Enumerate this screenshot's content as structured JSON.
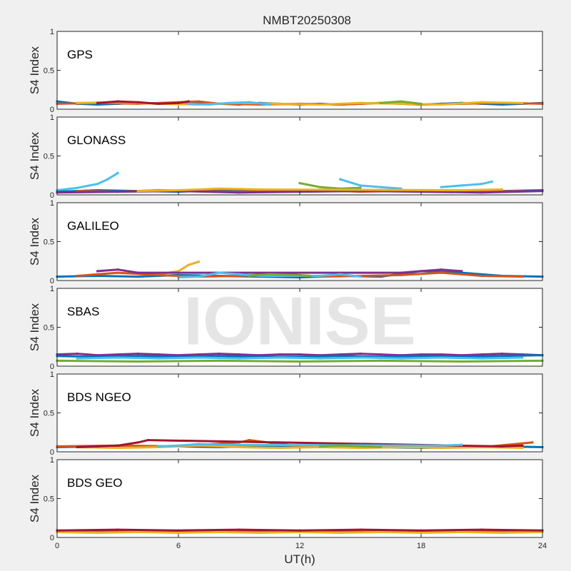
{
  "chart_data": {
    "type": "scatter",
    "title": "NMBT20250308",
    "watermark": "IONISE",
    "xlabel": "UT(h)",
    "ylabel": "S4 Index",
    "xlim": [
      0,
      24
    ],
    "ylim": [
      0,
      1
    ],
    "xticks": [
      0,
      6,
      12,
      18,
      24
    ],
    "yticks": [
      0,
      0.5,
      1
    ],
    "grid": false,
    "series_colors": [
      "#0072BD",
      "#D95319",
      "#EDB120",
      "#7E2F8E",
      "#77AC30",
      "#4DBEEE",
      "#A2142F"
    ],
    "panels": [
      {
        "name": "GPS",
        "series": [
          {
            "color": "#0072BD",
            "x": [
              0,
              1,
              2,
              3,
              4,
              5,
              6,
              7,
              8,
              9,
              10,
              11,
              12,
              13,
              14,
              15,
              16,
              17,
              18,
              19,
              20,
              21,
              22,
              23,
              24
            ],
            "y": [
              0.1,
              0.07,
              0.06,
              0.07,
              0.08,
              0.07,
              0.08,
              0.09,
              0.07,
              0.06,
              0.08,
              0.07,
              0.06,
              0.07,
              0.06,
              0.07,
              0.08,
              0.07,
              0.06,
              0.07,
              0.08,
              0.07,
              0.06,
              0.07,
              0.08
            ]
          },
          {
            "color": "#D95319",
            "x": [
              0,
              2,
              4,
              6,
              7,
              8,
              10,
              12,
              14,
              16,
              18,
              20,
              22,
              24
            ],
            "y": [
              0.07,
              0.08,
              0.07,
              0.09,
              0.1,
              0.07,
              0.06,
              0.07,
              0.06,
              0.08,
              0.06,
              0.07,
              0.08,
              0.07
            ]
          },
          {
            "color": "#EDB120",
            "x": [
              1,
              3,
              5,
              7,
              9,
              11,
              13,
              15,
              17,
              19,
              21,
              23
            ],
            "y": [
              0.08,
              0.09,
              0.07,
              0.06,
              0.08,
              0.07,
              0.06,
              0.08,
              0.07,
              0.06,
              0.09,
              0.08
            ]
          },
          {
            "color": "#A2142F",
            "x": [
              2,
              3,
              4,
              5,
              6,
              6.5
            ],
            "y": [
              0.08,
              0.1,
              0.09,
              0.07,
              0.08,
              0.1
            ]
          },
          {
            "color": "#4DBEEE",
            "x": [
              6.5,
              7.5,
              8.5,
              9.5,
              10.5
            ],
            "y": [
              0.07,
              0.06,
              0.08,
              0.09,
              0.06
            ]
          },
          {
            "color": "#77AC30",
            "x": [
              16,
              17,
              18
            ],
            "y": [
              0.08,
              0.1,
              0.07
            ]
          }
        ]
      },
      {
        "name": "GLONASS",
        "series": [
          {
            "color": "#4DBEEE",
            "x": [
              0,
              1,
              2,
              2.5,
              3
            ],
            "y": [
              0.06,
              0.09,
              0.14,
              0.2,
              0.28
            ]
          },
          {
            "color": "#0072BD",
            "x": [
              0,
              2,
              4,
              6,
              8,
              10,
              12,
              14,
              16,
              18,
              20,
              22,
              24
            ],
            "y": [
              0.04,
              0.06,
              0.05,
              0.04,
              0.06,
              0.05,
              0.04,
              0.05,
              0.06,
              0.05,
              0.04,
              0.05,
              0.06
            ]
          },
          {
            "color": "#D95319",
            "x": [
              1,
              3,
              5,
              7,
              9,
              11,
              13,
              15,
              17,
              19,
              21,
              23
            ],
            "y": [
              0.05,
              0.04,
              0.06,
              0.05,
              0.04,
              0.05,
              0.06,
              0.04,
              0.05,
              0.06,
              0.04,
              0.05
            ]
          },
          {
            "color": "#77AC30",
            "x": [
              12,
              13,
              14,
              15
            ],
            "y": [
              0.15,
              0.1,
              0.08,
              0.09
            ]
          },
          {
            "color": "#4DBEEE",
            "x": [
              14,
              15,
              16,
              17
            ],
            "y": [
              0.2,
              0.12,
              0.1,
              0.08
            ]
          },
          {
            "color": "#4DBEEE",
            "x": [
              19,
              20,
              21,
              21.5
            ],
            "y": [
              0.1,
              0.12,
              0.14,
              0.17
            ]
          },
          {
            "color": "#7E2F8E",
            "x": [
              0,
              3,
              6,
              9,
              12,
              15,
              18,
              21,
              24
            ],
            "y": [
              0.03,
              0.04,
              0.05,
              0.03,
              0.04,
              0.05,
              0.04,
              0.03,
              0.05
            ]
          },
          {
            "color": "#EDB120",
            "x": [
              4,
              6,
              8,
              10,
              20,
              22
            ],
            "y": [
              0.05,
              0.06,
              0.08,
              0.07,
              0.06,
              0.07
            ]
          }
        ]
      },
      {
        "name": "GALILEO",
        "series": [
          {
            "color": "#EDB120",
            "x": [
              5,
              6,
              6.5,
              7
            ],
            "y": [
              0.08,
              0.12,
              0.2,
              0.24
            ]
          },
          {
            "color": "#0072BD",
            "x": [
              0,
              2,
              4,
              6,
              8,
              10,
              12,
              14,
              16,
              18,
              20,
              22,
              24
            ],
            "y": [
              0.05,
              0.06,
              0.05,
              0.07,
              0.06,
              0.05,
              0.04,
              0.06,
              0.05,
              0.12,
              0.1,
              0.06,
              0.05
            ]
          },
          {
            "color": "#D95319",
            "x": [
              1,
              3,
              5,
              7,
              9,
              11,
              13,
              15,
              17,
              19,
              21,
              23
            ],
            "y": [
              0.06,
              0.1,
              0.07,
              0.05,
              0.06,
              0.09,
              0.05,
              0.06,
              0.07,
              0.1,
              0.06,
              0.05
            ]
          },
          {
            "color": "#7E2F8E",
            "x": [
              2,
              3,
              4,
              17,
              18,
              19,
              20
            ],
            "y": [
              0.12,
              0.14,
              0.1,
              0.1,
              0.12,
              0.14,
              0.12
            ]
          },
          {
            "color": "#4DBEEE",
            "x": [
              6,
              7,
              8,
              9,
              10,
              13,
              14,
              15
            ],
            "y": [
              0.04,
              0.05,
              0.1,
              0.08,
              0.06,
              0.06,
              0.08,
              0.05
            ]
          },
          {
            "color": "#77AC30",
            "x": [
              9.5,
              10.5,
              11.5,
              12.5
            ],
            "y": [
              0.06,
              0.08,
              0.07,
              0.06
            ]
          }
        ]
      },
      {
        "name": "SBAS",
        "series": [
          {
            "color": "#7E2F8E",
            "x": [
              0,
              1,
              2,
              3,
              4,
              5,
              6,
              7,
              8,
              9,
              10,
              11,
              12,
              13,
              14,
              15,
              16,
              17,
              18,
              19,
              20,
              21,
              22,
              23,
              24
            ],
            "y": [
              0.15,
              0.16,
              0.14,
              0.15,
              0.16,
              0.15,
              0.14,
              0.15,
              0.16,
              0.15,
              0.14,
              0.15,
              0.15,
              0.14,
              0.15,
              0.16,
              0.15,
              0.14,
              0.15,
              0.15,
              0.14,
              0.15,
              0.16,
              0.15,
              0.14
            ]
          },
          {
            "color": "#0072BD",
            "x": [
              0,
              2,
              4,
              6,
              8,
              10,
              12,
              14,
              16,
              18,
              20,
              22,
              24
            ],
            "y": [
              0.13,
              0.12,
              0.13,
              0.12,
              0.13,
              0.12,
              0.12,
              0.13,
              0.12,
              0.13,
              0.12,
              0.13,
              0.14
            ]
          },
          {
            "color": "#4DBEEE",
            "x": [
              1,
              3,
              5,
              7,
              9,
              11,
              13,
              15,
              17,
              19,
              21,
              23
            ],
            "y": [
              0.1,
              0.11,
              0.1,
              0.11,
              0.1,
              0.11,
              0.1,
              0.11,
              0.1,
              0.11,
              0.1,
              0.11
            ]
          },
          {
            "color": "#77AC30",
            "x": [
              0,
              4,
              8,
              12,
              16,
              20,
              24
            ],
            "y": [
              0.07,
              0.06,
              0.07,
              0.06,
              0.07,
              0.06,
              0.07
            ]
          }
        ]
      },
      {
        "name": "BDS NGEO",
        "series": [
          {
            "color": "#0072BD",
            "x": [
              0,
              2,
              4,
              6,
              8,
              10,
              12,
              14,
              16,
              18,
              20,
              22,
              24
            ],
            "y": [
              0.06,
              0.07,
              0.06,
              0.07,
              0.06,
              0.07,
              0.06,
              0.07,
              0.06,
              0.05,
              0.06,
              0.07,
              0.06
            ]
          },
          {
            "color": "#D95319",
            "x": [
              0,
              3,
              6,
              9,
              9.5,
              12,
              15,
              18,
              21,
              23.5
            ],
            "y": [
              0.07,
              0.08,
              0.07,
              0.12,
              0.15,
              0.07,
              0.08,
              0.07,
              0.06,
              0.12
            ]
          },
          {
            "color": "#EDB120",
            "x": [
              1,
              3,
              5,
              7,
              9,
              11,
              13,
              15,
              17,
              19,
              21,
              23
            ],
            "y": [
              0.06,
              0.05,
              0.06,
              0.08,
              0.06,
              0.05,
              0.06,
              0.05,
              0.06,
              0.05,
              0.06,
              0.05
            ]
          },
          {
            "color": "#A2142F",
            "x": [
              1,
              2,
              3,
              4,
              4.5,
              22,
              23
            ],
            "y": [
              0.06,
              0.07,
              0.08,
              0.12,
              0.15,
              0.07,
              0.08
            ]
          },
          {
            "color": "#4DBEEE",
            "x": [
              5,
              6,
              7,
              8,
              19,
              20
            ],
            "y": [
              0.07,
              0.08,
              0.1,
              0.09,
              0.08,
              0.09
            ]
          },
          {
            "color": "#77AC30",
            "x": [
              13,
              14,
              15,
              16
            ],
            "y": [
              0.07,
              0.08,
              0.07,
              0.06
            ]
          }
        ]
      },
      {
        "name": "BDS GEO",
        "series": [
          {
            "color": "#D95319",
            "x": [
              0,
              1,
              2,
              3,
              4,
              5,
              6,
              7,
              8,
              9,
              10,
              11,
              12,
              13,
              14,
              15,
              16,
              17,
              18,
              19,
              20,
              21,
              22,
              23,
              24
            ],
            "y": [
              0.08,
              0.09,
              0.08,
              0.09,
              0.08,
              0.09,
              0.08,
              0.09,
              0.08,
              0.09,
              0.08,
              0.09,
              0.08,
              0.09,
              0.08,
              0.09,
              0.08,
              0.09,
              0.08,
              0.09,
              0.08,
              0.09,
              0.08,
              0.09,
              0.08
            ]
          },
          {
            "color": "#EDB120",
            "x": [
              0,
              2,
              4,
              6,
              8,
              10,
              12,
              14,
              16,
              18,
              20,
              22,
              24
            ],
            "y": [
              0.07,
              0.06,
              0.07,
              0.06,
              0.07,
              0.06,
              0.07,
              0.06,
              0.07,
              0.06,
              0.07,
              0.06,
              0.07
            ]
          },
          {
            "color": "#A2142F",
            "x": [
              0,
              3,
              6,
              9,
              12,
              15,
              18,
              21,
              24
            ],
            "y": [
              0.09,
              0.1,
              0.09,
              0.1,
              0.09,
              0.1,
              0.09,
              0.1,
              0.09
            ]
          }
        ]
      }
    ]
  }
}
